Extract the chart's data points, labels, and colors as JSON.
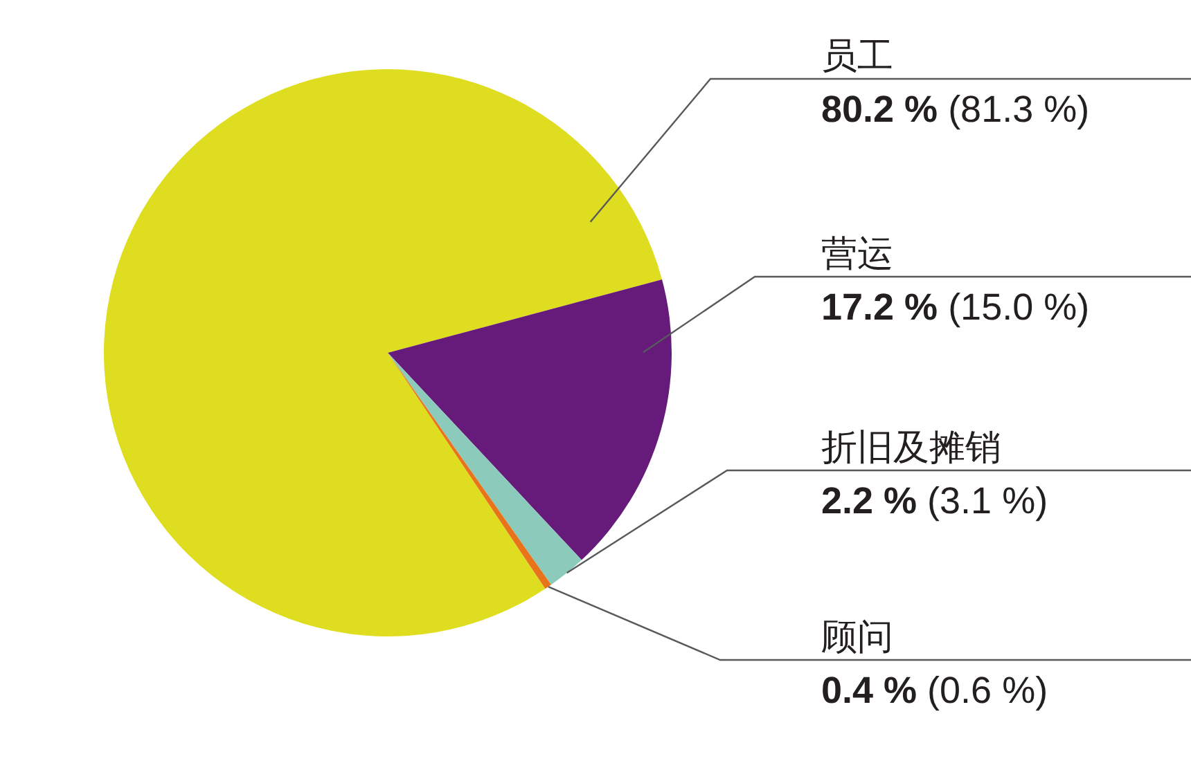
{
  "chart_data": {
    "type": "pie",
    "categories": [
      "员工",
      "营运",
      "折旧及摊销",
      "顾问"
    ],
    "values": [
      80.2,
      17.2,
      2.2,
      0.4
    ],
    "colors": [
      "#dfdd20",
      "#661b7b",
      "#8ccbbb",
      "#e8731a"
    ],
    "value_labels": [
      "**80.2 %** (81.3 %)",
      "**17.2 %** (15.0 %)",
      "**2.2 %** (3.1 %)",
      "**0.4 %** (0.6 %)"
    ]
  }
}
